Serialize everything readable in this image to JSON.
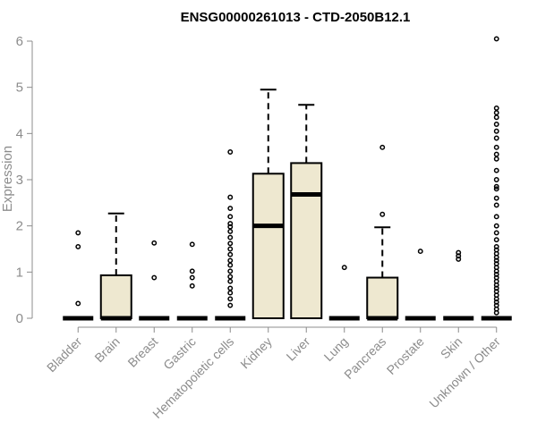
{
  "chart_data": {
    "type": "boxplot",
    "title": "ENSG00000261013 - CTD-2050B12.1",
    "ylabel": "Expression",
    "ylim": [
      0,
      6
    ],
    "yticks": [
      0,
      1,
      2,
      3,
      4,
      5,
      6
    ],
    "box_fill": "#eee8d0",
    "categories": [
      "Bladder",
      "Brain",
      "Breast",
      "Gastric",
      "Hematopoietic cells",
      "Kidney",
      "Liver",
      "Lung",
      "Pancreas",
      "Prostate",
      "Skin",
      "Unknown / Other"
    ],
    "boxes": [
      {
        "category": "Bladder",
        "q1": 0,
        "median": 0,
        "q3": 0,
        "whisker_low": 0,
        "whisker_high": 0,
        "outliers": [
          0.32,
          1.55,
          1.85
        ]
      },
      {
        "category": "Brain",
        "q1": 0,
        "median": 0,
        "q3": 0.93,
        "whisker_low": 0,
        "whisker_high": 2.27,
        "outliers": []
      },
      {
        "category": "Breast",
        "q1": 0,
        "median": 0,
        "q3": 0,
        "whisker_low": 0,
        "whisker_high": 0,
        "outliers": [
          0.88,
          1.63
        ]
      },
      {
        "category": "Gastric",
        "q1": 0,
        "median": 0,
        "q3": 0,
        "whisker_low": 0,
        "whisker_high": 0,
        "outliers": [
          0.7,
          0.88,
          1.02,
          1.6
        ]
      },
      {
        "category": "Hematopoietic cells",
        "q1": 0,
        "median": 0,
        "q3": 0,
        "whisker_low": 0,
        "whisker_high": 0,
        "outliers": [
          0.28,
          0.42,
          0.55,
          0.65,
          0.8,
          0.9,
          1.02,
          1.15,
          1.25,
          1.38,
          1.5,
          1.62,
          1.75,
          1.88,
          1.98,
          2.05,
          2.2,
          2.38,
          2.62,
          3.6
        ]
      },
      {
        "category": "Kidney",
        "q1": 0,
        "median": 2.0,
        "q3": 3.13,
        "whisker_low": 0,
        "whisker_high": 4.95,
        "outliers": []
      },
      {
        "category": "Liver",
        "q1": 0,
        "median": 2.68,
        "q3": 3.36,
        "whisker_low": 0,
        "whisker_high": 4.62,
        "outliers": []
      },
      {
        "category": "Lung",
        "q1": 0,
        "median": 0,
        "q3": 0,
        "whisker_low": 0,
        "whisker_high": 0,
        "outliers": [
          1.1
        ]
      },
      {
        "category": "Pancreas",
        "q1": 0,
        "median": 0,
        "q3": 0.88,
        "whisker_low": 0,
        "whisker_high": 1.97,
        "outliers": [
          2.25,
          3.7
        ]
      },
      {
        "category": "Prostate",
        "q1": 0,
        "median": 0,
        "q3": 0,
        "whisker_low": 0,
        "whisker_high": 0,
        "outliers": [
          1.45
        ]
      },
      {
        "category": "Skin",
        "q1": 0,
        "median": 0,
        "q3": 0,
        "whisker_low": 0,
        "whisker_high": 0,
        "outliers": [
          1.28,
          1.35,
          1.42
        ]
      },
      {
        "category": "Unknown / Other",
        "q1": 0,
        "median": 0,
        "q3": 0,
        "whisker_low": 0,
        "whisker_high": 0,
        "outliers": [
          0.12,
          0.2,
          0.28,
          0.35,
          0.42,
          0.5,
          0.58,
          0.65,
          0.72,
          0.8,
          0.88,
          0.95,
          1.02,
          1.1,
          1.18,
          1.25,
          1.32,
          1.4,
          1.48,
          1.55,
          1.7,
          1.85,
          2.0,
          2.2,
          2.45,
          2.6,
          2.8,
          2.85,
          3.0,
          3.2,
          3.45,
          3.55,
          3.7,
          3.9,
          4.05,
          4.2,
          4.35,
          4.45,
          4.55,
          6.05
        ]
      }
    ]
  }
}
